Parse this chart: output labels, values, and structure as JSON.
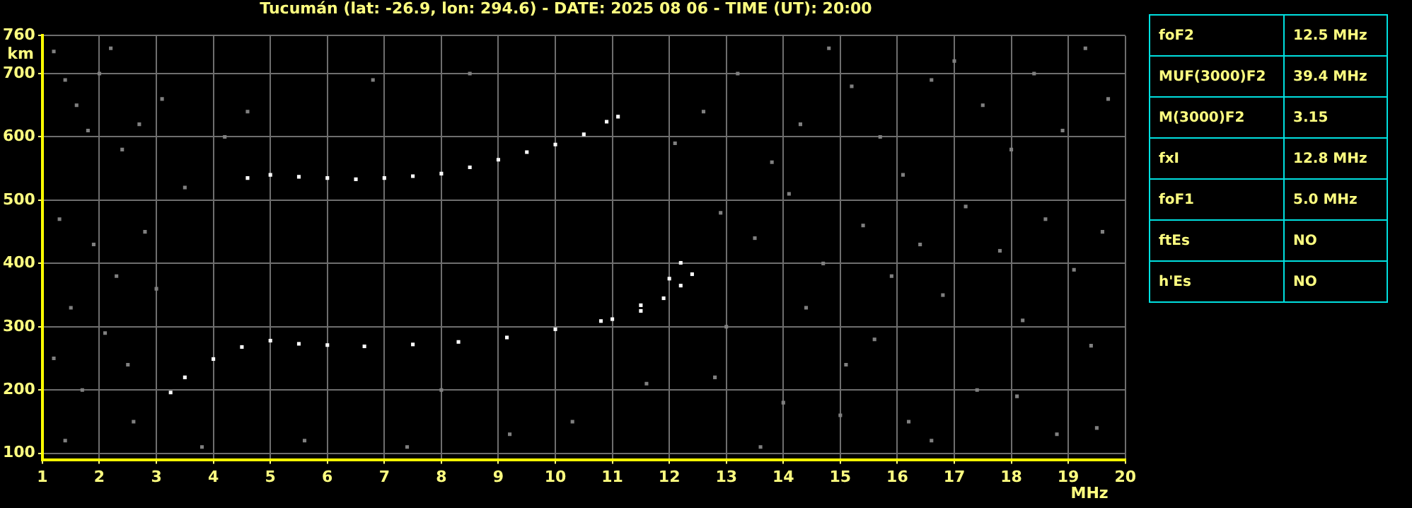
{
  "chart_data": [
    {
      "type": "scatter",
      "title": "Tucumán (lat: -26.9, lon: 294.6) - DATE: 2025 08 06 - TIME (UT): 20:00",
      "xlabel": "MHz",
      "ylabel": "km",
      "xlim": [
        1,
        20
      ],
      "ylim": [
        90,
        760
      ],
      "xticks": [
        1,
        2,
        3,
        4,
        5,
        6,
        7,
        8,
        9,
        10,
        11,
        12,
        13,
        14,
        15,
        16,
        17,
        18,
        19,
        20
      ],
      "yticks": [
        100,
        200,
        300,
        400,
        500,
        600,
        700,
        760
      ],
      "grid": true,
      "legend": false,
      "marker": "square",
      "series": [
        {
          "color": "#808080",
          "x": [
            1.2,
            1.4,
            1.6,
            1.8,
            2.0,
            2.2,
            2.4,
            2.7,
            3.1,
            3.5,
            4.2,
            4.6,
            1.3,
            1.9,
            2.3,
            2.8,
            1.5,
            2.1,
            3.0,
            1.2,
            1.7,
            2.6,
            3.8,
            1.4,
            2.5,
            6.8,
            8.5,
            9.2,
            12.1,
            12.6,
            13.2,
            13.8,
            14.3,
            14.8,
            15.2,
            15.7,
            16.1,
            16.6,
            17.0,
            17.5,
            18.0,
            18.4,
            18.9,
            19.3,
            19.7,
            12.9,
            13.5,
            14.1,
            14.7,
            15.4,
            15.9,
            16.4,
            17.2,
            17.8,
            18.6,
            19.1,
            19.6,
            13.0,
            14.4,
            15.6,
            16.8,
            18.2,
            19.4,
            12.8,
            14.0,
            15.1,
            16.2,
            17.4,
            18.8,
            13.6,
            15.0,
            16.6,
            18.1,
            19.5,
            7.4,
            10.3,
            11.6,
            5.6,
            8.0
          ],
          "values": [
            735,
            690,
            650,
            610,
            700,
            740,
            580,
            620,
            660,
            520,
            600,
            640,
            470,
            430,
            380,
            450,
            330,
            290,
            360,
            250,
            200,
            150,
            110,
            120,
            240,
            690,
            700,
            130,
            590,
            640,
            700,
            560,
            620,
            740,
            680,
            600,
            540,
            690,
            720,
            650,
            580,
            700,
            610,
            740,
            660,
            480,
            440,
            510,
            400,
            460,
            380,
            430,
            490,
            420,
            470,
            390,
            450,
            300,
            330,
            280,
            350,
            310,
            270,
            220,
            180,
            240,
            150,
            200,
            130,
            110,
            160,
            120,
            190,
            140,
            110,
            150,
            210,
            120,
            200
          ]
        },
        {
          "color": "#ffffff",
          "x": [
            3.25,
            3.5,
            4.0,
            4.5,
            5.0,
            5.5,
            6.0,
            6.65,
            7.5,
            8.3,
            9.15,
            10.0,
            10.8,
            11.5,
            12.0,
            12.2
          ],
          "values": [
            196,
            220,
            249,
            268,
            278,
            273,
            271,
            269,
            272,
            276,
            283,
            296,
            309,
            334,
            376,
            401
          ]
        },
        {
          "color": "#ffffff",
          "x": [
            11.0,
            11.5,
            11.9,
            12.2,
            12.4
          ],
          "values": [
            312,
            325,
            345,
            365,
            383
          ]
        },
        {
          "color": "#ffffff",
          "x": [
            4.6,
            5.0,
            5.5,
            6.0,
            6.5,
            7.0,
            7.5,
            8.0,
            8.5,
            9.0,
            9.5,
            10.0,
            10.5,
            10.9,
            11.1
          ],
          "values": [
            535,
            540,
            537,
            535,
            533,
            535,
            538,
            542,
            552,
            564,
            576,
            588,
            604,
            624,
            632
          ]
        }
      ]
    },
    {
      "type": "other",
      "annotations": [
        "foF2",
        "12.5 MHz",
        "MUF(3000)F2",
        "39.4 MHz",
        "M(3000)F2",
        "3.15",
        "fxI",
        "12.8 MHz",
        "foF1",
        "5.0 MHz",
        "ftEs",
        "NO",
        "h'Es",
        "NO"
      ]
    }
  ]
}
